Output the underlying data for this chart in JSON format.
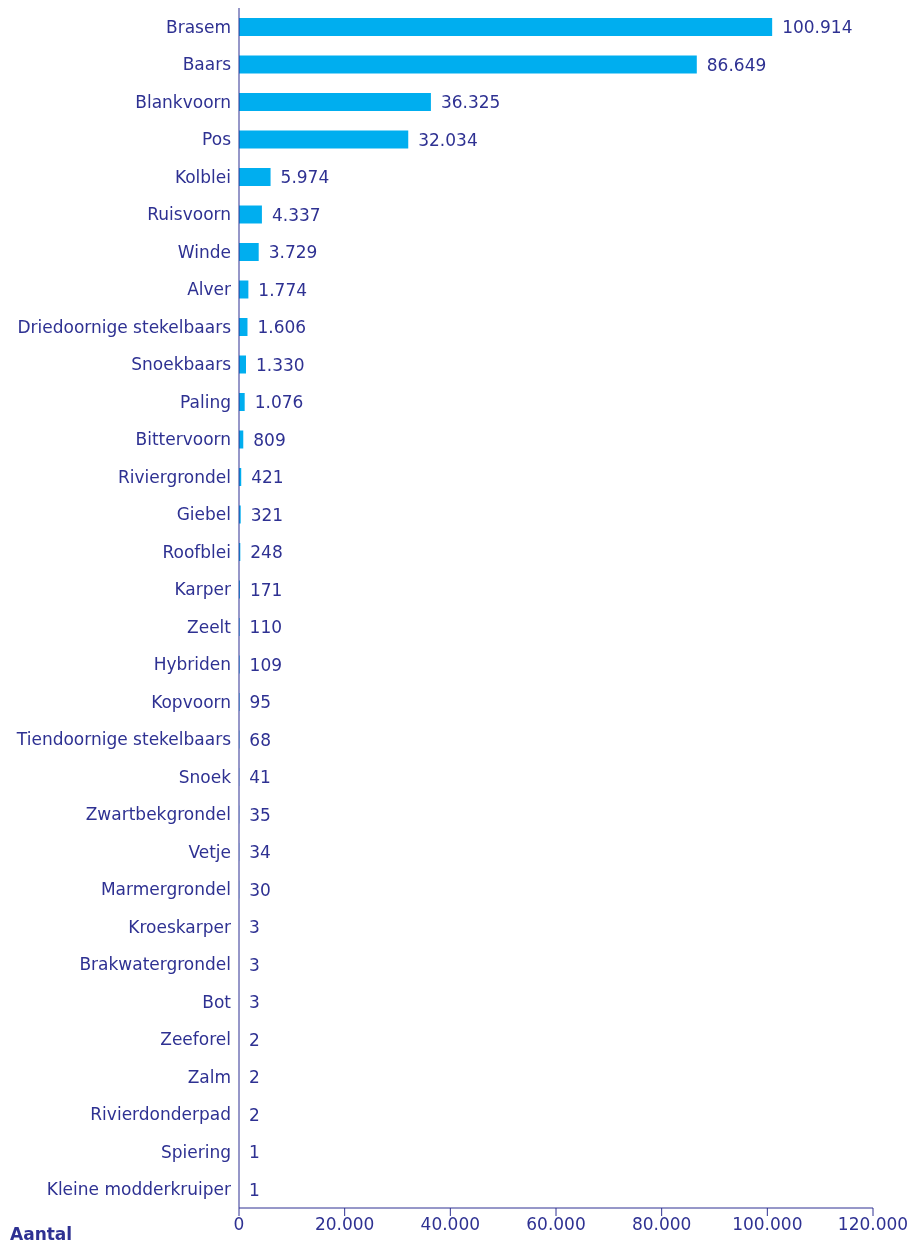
{
  "chart_data": {
    "type": "bar",
    "orientation": "horizontal",
    "xlabel": "Aantal",
    "categories": [
      "Brasem",
      "Baars",
      "Blankvoorn",
      "Pos",
      "Kolblei",
      "Ruisvoorn",
      "Winde",
      "Alver",
      "Driedoornige stekelbaars",
      "Snoekbaars",
      "Paling",
      "Bittervoorn",
      "Riviergrondel",
      "Giebel",
      "Roofblei",
      "Karper",
      "Zeelt",
      "Hybriden",
      "Kopvoorn",
      "Tiendoornige stekelbaars",
      "Snoek",
      "Zwartbekgrondel",
      "Vetje",
      "Marmergrondel",
      "Kroeskarper",
      "Brakwatergrondel",
      "Bot",
      "Zeeforel",
      "Zalm",
      "Rivierdonderpad",
      "Spiering",
      "Kleine modderkruiper"
    ],
    "values": [
      100914,
      86649,
      36325,
      32034,
      5974,
      4337,
      3729,
      1774,
      1606,
      1330,
      1076,
      809,
      421,
      321,
      248,
      171,
      110,
      109,
      95,
      68,
      41,
      35,
      34,
      30,
      3,
      3,
      3,
      2,
      2,
      2,
      1,
      1
    ],
    "value_labels": [
      "100.914",
      "86.649",
      "36.325",
      "32.034",
      "5.974",
      "4.337",
      "3.729",
      "1.774",
      "1.606",
      "1.330",
      "1.076",
      "809",
      "421",
      "321",
      "248",
      "171",
      "110",
      "109",
      "95",
      "68",
      "41",
      "35",
      "34",
      "30",
      "3",
      "3",
      "3",
      "2",
      "2",
      "2",
      "1",
      "1"
    ],
    "color": "#00aeef",
    "xlim": [
      0,
      120000
    ],
    "xticks": [
      0,
      {
        "value": 20000,
        "label": "20.000"
      },
      {
        "value": 40000,
        "label": "40.000"
      },
      {
        "value": 60000,
        "label": "60.000"
      },
      {
        "value": 80000,
        "label": "80.000"
      },
      {
        "value": 100000,
        "label": "100.000"
      },
      {
        "value": 120000,
        "label": "120.000"
      }
    ]
  }
}
